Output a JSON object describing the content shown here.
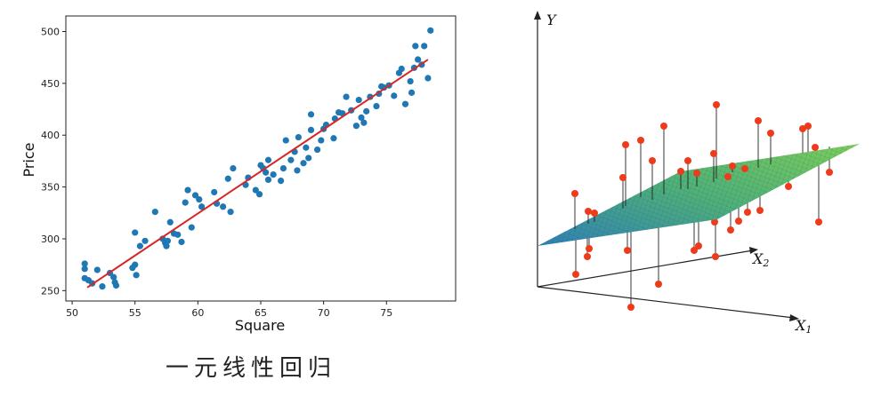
{
  "caption": "一元线性回归",
  "chart_data": [
    {
      "type": "scatter",
      "title": "",
      "xlabel": "Square",
      "ylabel": "Price",
      "xlim": [
        49.5,
        80.5
      ],
      "ylim": [
        240,
        515
      ],
      "xticks": [
        50,
        55,
        60,
        65,
        70,
        75
      ],
      "yticks": [
        250,
        300,
        350,
        400,
        450,
        500
      ],
      "grid": false,
      "point_color": "#1f77b4",
      "line_color": "#d62728",
      "regression_line": {
        "x": [
          51.2,
          78.3
        ],
        "y": [
          253,
          473
        ]
      },
      "points": [
        [
          51.0,
          276
        ],
        [
          51.0,
          271
        ],
        [
          51.0,
          262
        ],
        [
          51.3,
          260
        ],
        [
          51.6,
          257
        ],
        [
          52.0,
          270
        ],
        [
          52.4,
          254
        ],
        [
          53.0,
          267
        ],
        [
          53.3,
          263
        ],
        [
          53.4,
          258
        ],
        [
          53.5,
          255
        ],
        [
          54.8,
          272
        ],
        [
          55.0,
          275
        ],
        [
          55.0,
          306
        ],
        [
          55.1,
          265
        ],
        [
          55.4,
          293
        ],
        [
          55.8,
          298
        ],
        [
          56.6,
          326
        ],
        [
          57.2,
          300
        ],
        [
          57.4,
          296
        ],
        [
          57.5,
          293
        ],
        [
          57.6,
          298
        ],
        [
          57.8,
          316
        ],
        [
          58.1,
          305
        ],
        [
          58.4,
          304
        ],
        [
          58.7,
          297
        ],
        [
          59.0,
          335
        ],
        [
          59.2,
          347
        ],
        [
          59.5,
          311
        ],
        [
          59.8,
          342
        ],
        [
          60.1,
          338
        ],
        [
          60.3,
          331
        ],
        [
          61.3,
          345
        ],
        [
          61.5,
          334
        ],
        [
          62.0,
          331
        ],
        [
          62.4,
          358
        ],
        [
          62.6,
          326
        ],
        [
          62.8,
          368
        ],
        [
          63.8,
          352
        ],
        [
          64.0,
          359
        ],
        [
          64.6,
          347
        ],
        [
          64.9,
          343
        ],
        [
          65.0,
          371
        ],
        [
          65.2,
          368
        ],
        [
          65.4,
          364
        ],
        [
          65.6,
          376
        ],
        [
          65.6,
          357
        ],
        [
          66.0,
          362
        ],
        [
          66.6,
          356
        ],
        [
          66.8,
          368
        ],
        [
          67.0,
          395
        ],
        [
          67.4,
          376
        ],
        [
          67.7,
          384
        ],
        [
          67.9,
          366
        ],
        [
          68.0,
          398
        ],
        [
          68.4,
          373
        ],
        [
          68.6,
          388
        ],
        [
          68.8,
          378
        ],
        [
          69.0,
          405
        ],
        [
          69.0,
          420
        ],
        [
          69.5,
          386
        ],
        [
          69.8,
          395
        ],
        [
          70.0,
          406
        ],
        [
          70.2,
          410
        ],
        [
          70.8,
          397
        ],
        [
          70.9,
          416
        ],
        [
          71.2,
          422
        ],
        [
          71.5,
          421
        ],
        [
          71.8,
          437
        ],
        [
          72.2,
          424
        ],
        [
          72.6,
          409
        ],
        [
          72.8,
          434
        ],
        [
          73.0,
          417
        ],
        [
          73.2,
          412
        ],
        [
          73.4,
          423
        ],
        [
          73.7,
          437
        ],
        [
          74.2,
          428
        ],
        [
          74.4,
          440
        ],
        [
          74.6,
          447
        ],
        [
          74.8,
          446
        ],
        [
          75.2,
          448
        ],
        [
          75.6,
          438
        ],
        [
          76.0,
          460
        ],
        [
          76.2,
          464
        ],
        [
          76.5,
          430
        ],
        [
          76.9,
          452
        ],
        [
          77.0,
          441
        ],
        [
          77.2,
          465
        ],
        [
          77.3,
          486
        ],
        [
          77.5,
          473
        ],
        [
          77.8,
          468
        ],
        [
          78.0,
          486
        ],
        [
          78.3,
          455
        ],
        [
          78.5,
          501
        ]
      ]
    },
    {
      "type": "scatter3d",
      "axes": [
        "Y",
        "X2",
        "X1"
      ],
      "axis_labels": {
        "y": "Y",
        "x2": "X",
        "x2_sub": "2",
        "x1": "X",
        "x1_sub": "1"
      },
      "plane_colors": [
        "#2f7fb8",
        "#4fb07a",
        "#7ccd5a"
      ],
      "point_color": "#ee3b1c",
      "residual_line_color": "#222222"
    }
  ]
}
